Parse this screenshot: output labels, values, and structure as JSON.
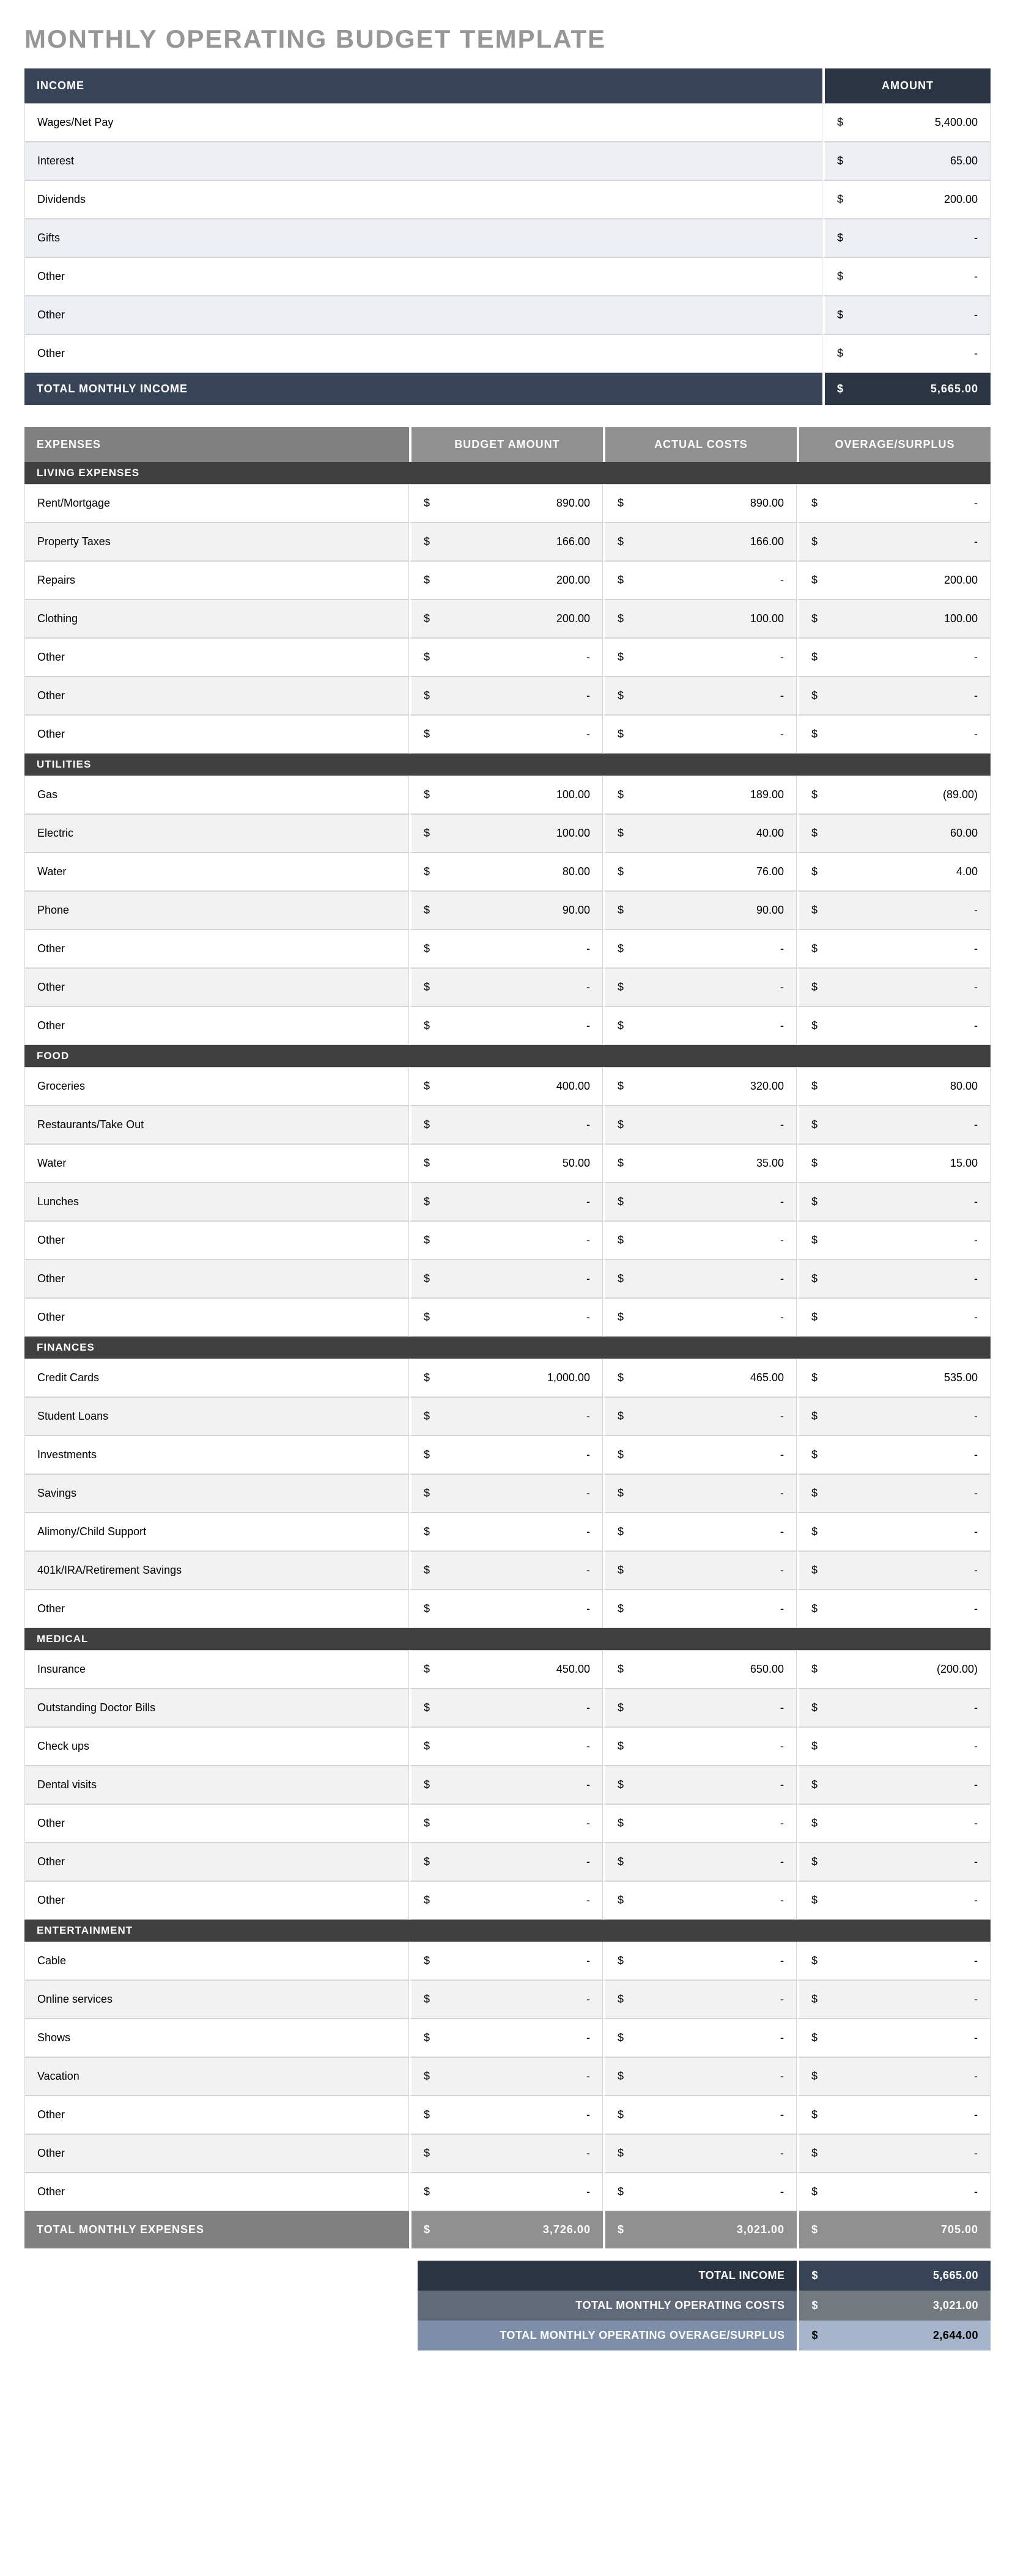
{
  "title": "MONTHLY OPERATING BUDGET TEMPLATE",
  "colors": {
    "title_text": "#979797",
    "income_header_bg": "#374457",
    "income_header_amt_bg": "#2a3443",
    "income_alt_row_bg": "#ecf0f4",
    "expenses_header_bg": "#808080",
    "expenses_header_col_bg": "#909090",
    "category_row_bg": "#404040",
    "expense_alt_row_bg": "#f2f2f2",
    "border_color": "#d5d5d5"
  },
  "income": {
    "header": {
      "label": "INCOME",
      "amount": "AMOUNT"
    },
    "currency": "$",
    "rows": [
      {
        "label": "Wages/Net Pay",
        "value": "5,400.00"
      },
      {
        "label": "Interest",
        "value": "65.00"
      },
      {
        "label": "Dividends",
        "value": "200.00"
      },
      {
        "label": "Gifts",
        "value": "-"
      },
      {
        "label": "Other",
        "value": "-"
      },
      {
        "label": "Other",
        "value": "-"
      },
      {
        "label": "Other",
        "value": "-"
      }
    ],
    "total": {
      "label": "TOTAL MONTHLY INCOME",
      "value": "5,665.00"
    }
  },
  "expenses": {
    "header": {
      "label": "EXPENSES",
      "budget": "BUDGET AMOUNT",
      "actual": "ACTUAL COSTS",
      "overage": "OVERAGE/SURPLUS"
    },
    "currency": "$",
    "categories": [
      {
        "name": "LIVING EXPENSES",
        "rows": [
          {
            "label": "Rent/Mortgage",
            "budget": "890.00",
            "actual": "890.00",
            "overage": "-"
          },
          {
            "label": "Property Taxes",
            "budget": "166.00",
            "actual": "166.00",
            "overage": "-"
          },
          {
            "label": "Repairs",
            "budget": "200.00",
            "actual": "-",
            "overage": "200.00"
          },
          {
            "label": "Clothing",
            "budget": "200.00",
            "actual": "100.00",
            "overage": "100.00"
          },
          {
            "label": "Other",
            "budget": "-",
            "actual": "-",
            "overage": "-"
          },
          {
            "label": "Other",
            "budget": "-",
            "actual": "-",
            "overage": "-"
          },
          {
            "label": "Other",
            "budget": "-",
            "actual": "-",
            "overage": "-"
          }
        ]
      },
      {
        "name": "UTILITIES",
        "rows": [
          {
            "label": "Gas",
            "budget": "100.00",
            "actual": "189.00",
            "overage": "(89.00)"
          },
          {
            "label": "Electric",
            "budget": "100.00",
            "actual": "40.00",
            "overage": "60.00"
          },
          {
            "label": "Water",
            "budget": "80.00",
            "actual": "76.00",
            "overage": "4.00"
          },
          {
            "label": "Phone",
            "budget": "90.00",
            "actual": "90.00",
            "overage": "-"
          },
          {
            "label": "Other",
            "budget": "-",
            "actual": "-",
            "overage": "-"
          },
          {
            "label": "Other",
            "budget": "-",
            "actual": "-",
            "overage": "-"
          },
          {
            "label": "Other",
            "budget": "-",
            "actual": "-",
            "overage": "-"
          }
        ]
      },
      {
        "name": "FOOD",
        "rows": [
          {
            "label": "Groceries",
            "budget": "400.00",
            "actual": "320.00",
            "overage": "80.00"
          },
          {
            "label": "Restaurants/Take Out",
            "budget": "-",
            "actual": "-",
            "overage": "-"
          },
          {
            "label": "Water",
            "budget": "50.00",
            "actual": "35.00",
            "overage": "15.00"
          },
          {
            "label": "Lunches",
            "budget": "-",
            "actual": "-",
            "overage": "-"
          },
          {
            "label": "Other",
            "budget": "-",
            "actual": "-",
            "overage": "-"
          },
          {
            "label": "Other",
            "budget": "-",
            "actual": "-",
            "overage": "-"
          },
          {
            "label": "Other",
            "budget": "-",
            "actual": "-",
            "overage": "-"
          }
        ]
      },
      {
        "name": "FINANCES",
        "rows": [
          {
            "label": "Credit Cards",
            "budget": "1,000.00",
            "actual": "465.00",
            "overage": "535.00"
          },
          {
            "label": "Student Loans",
            "budget": "-",
            "actual": "-",
            "overage": "-"
          },
          {
            "label": "Investments",
            "budget": "-",
            "actual": "-",
            "overage": "-"
          },
          {
            "label": "Savings",
            "budget": "-",
            "actual": "-",
            "overage": "-"
          },
          {
            "label": "Alimony/Child Support",
            "budget": "-",
            "actual": "-",
            "overage": "-"
          },
          {
            "label": "401k/IRA/Retirement Savings",
            "budget": "-",
            "actual": "-",
            "overage": "-"
          },
          {
            "label": "Other",
            "budget": "-",
            "actual": "-",
            "overage": "-"
          }
        ]
      },
      {
        "name": "MEDICAL",
        "rows": [
          {
            "label": "Insurance",
            "budget": "450.00",
            "actual": "650.00",
            "overage": "(200.00)"
          },
          {
            "label": "Outstanding Doctor Bills",
            "budget": "-",
            "actual": "-",
            "overage": "-"
          },
          {
            "label": "Check ups",
            "budget": "-",
            "actual": "-",
            "overage": "-"
          },
          {
            "label": "Dental visits",
            "budget": "-",
            "actual": "-",
            "overage": "-"
          },
          {
            "label": "Other",
            "budget": "-",
            "actual": "-",
            "overage": "-"
          },
          {
            "label": "Other",
            "budget": "-",
            "actual": "-",
            "overage": "-"
          },
          {
            "label": "Other",
            "budget": "-",
            "actual": "-",
            "overage": "-"
          }
        ]
      },
      {
        "name": "ENTERTAINMENT",
        "rows": [
          {
            "label": "Cable",
            "budget": "-",
            "actual": "-",
            "overage": "-"
          },
          {
            "label": "Online services",
            "budget": "-",
            "actual": "-",
            "overage": "-"
          },
          {
            "label": "Shows",
            "budget": "-",
            "actual": "-",
            "overage": "-"
          },
          {
            "label": "Vacation",
            "budget": "-",
            "actual": "-",
            "overage": "-"
          },
          {
            "label": "Other",
            "budget": "-",
            "actual": "-",
            "overage": "-"
          },
          {
            "label": "Other",
            "budget": "-",
            "actual": "-",
            "overage": "-"
          },
          {
            "label": "Other",
            "budget": "-",
            "actual": "-",
            "overage": "-"
          }
        ]
      }
    ],
    "total": {
      "label": "TOTAL MONTHLY EXPENSES",
      "budget": "3,726.00",
      "actual": "3,021.00",
      "overage": "705.00"
    }
  },
  "summary": {
    "rows": [
      {
        "label": "TOTAL INCOME",
        "value": "5,665.00"
      },
      {
        "label": "TOTAL MONTHLY OPERATING COSTS",
        "value": "3,021.00"
      },
      {
        "label": "TOTAL MONTHLY OPERATING OVERAGE/SURPLUS",
        "value": "2,644.00"
      }
    ],
    "currency": "$"
  }
}
